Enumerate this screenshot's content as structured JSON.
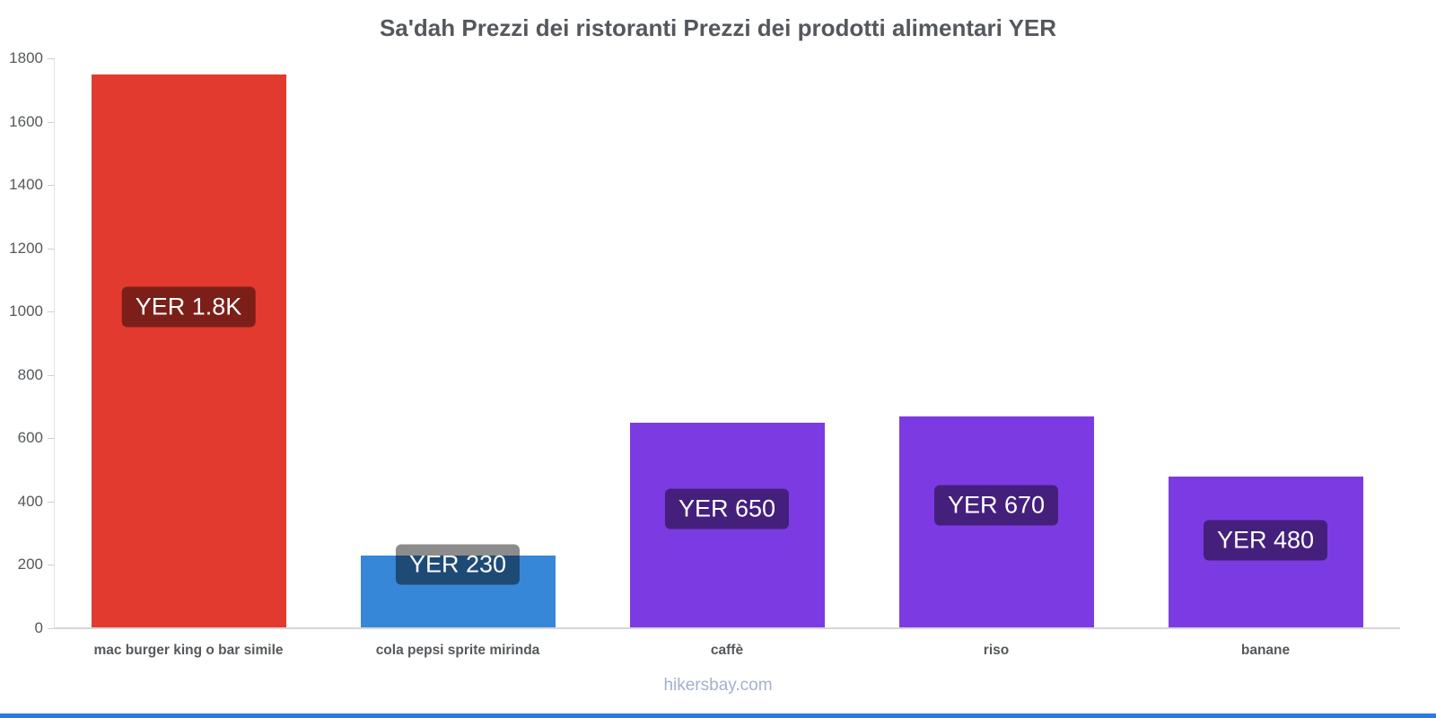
{
  "title": "Sa'dah Prezzi dei ristoranti Prezzi dei prodotti alimentari YER",
  "footer": "hikersbay.com",
  "accent_bottom_bar_color": "#2979e8",
  "chart_data": {
    "type": "bar",
    "title": "Sa'dah Prezzi dei ristoranti Prezzi dei prodotti alimentari YER",
    "categories": [
      "mac burger king o bar simile",
      "cola pepsi sprite mirinda",
      "caffè",
      "riso",
      "banane"
    ],
    "values": [
      1750,
      230,
      650,
      670,
      480
    ],
    "bar_labels": [
      "YER 1.8K",
      "YER 230",
      "YER 650",
      "YER 670",
      "YER 480"
    ],
    "bar_colors": [
      "#e23a2e",
      "#3787d8",
      "#7c3be2",
      "#7c3be2",
      "#7c3be2"
    ],
    "label_badge_overlay": "rgba(0,0,0,0.45)",
    "label_text_color": "#ffffff",
    "xlabel": "",
    "ylabel": "",
    "ylim": [
      0,
      1800
    ],
    "yticks": [
      0,
      200,
      400,
      600,
      800,
      1000,
      1200,
      1400,
      1600,
      1800
    ],
    "grid": false,
    "legend": "none",
    "currency": "YER"
  }
}
